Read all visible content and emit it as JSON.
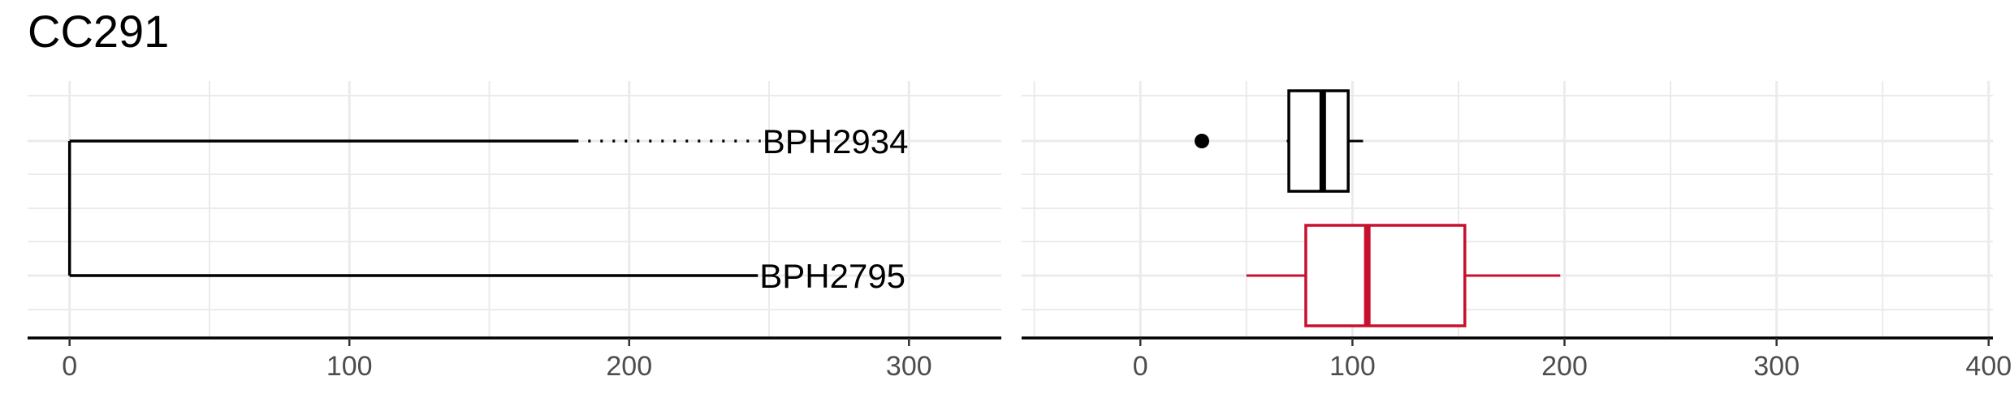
{
  "title": "CC291",
  "chart_data": [
    {
      "type": "tree",
      "xlim": [
        -15,
        333
      ],
      "xticks": [
        0,
        100,
        200,
        300
      ],
      "tips": [
        {
          "label": "BPH2934",
          "solid_to": 181,
          "dotted_to": 247
        },
        {
          "label": "BPH2795",
          "solid_to": 246
        }
      ],
      "root_x": 0,
      "grid": true,
      "line_color": "#000000"
    },
    {
      "type": "boxplot",
      "xlim": [
        -56,
        402
      ],
      "xticks": [
        0,
        100,
        200,
        300,
        400
      ],
      "series": [
        {
          "category": "BPH2934",
          "whisker_low": 69,
          "q1": 70,
          "median": 86,
          "q3": 98,
          "whisker_high": 105,
          "outliers": [
            29
          ],
          "color": "#000000"
        },
        {
          "category": "BPH2795",
          "whisker_low": 50,
          "q1": 78,
          "median": 107,
          "q3": 153,
          "whisker_high": 198,
          "outliers": [],
          "color": "#c8102e"
        }
      ],
      "grid": true
    }
  ]
}
